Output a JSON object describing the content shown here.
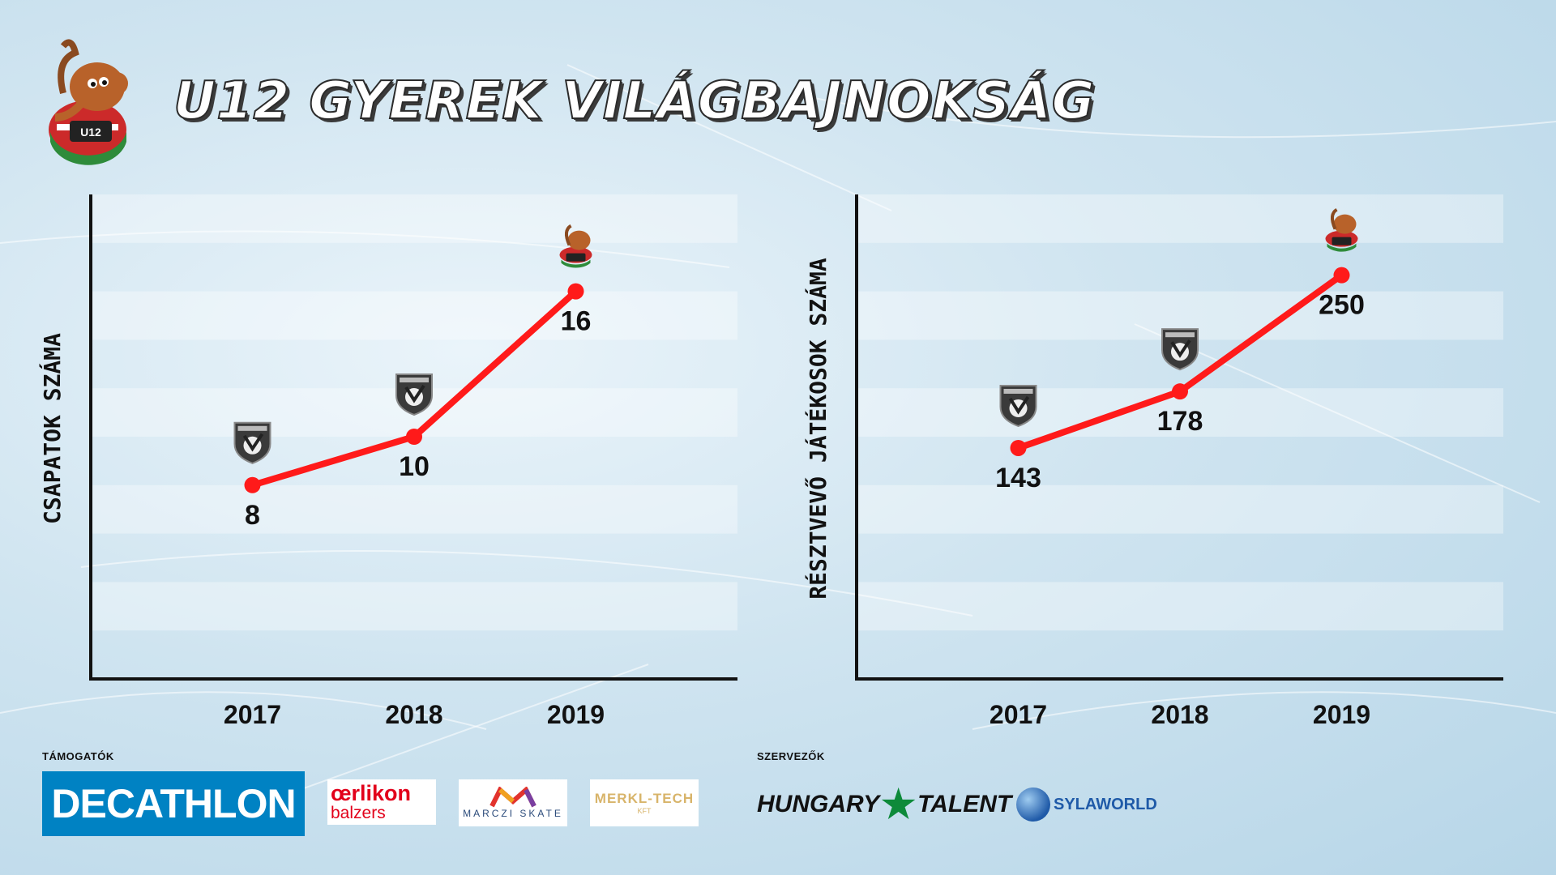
{
  "title": "U12 GYEREK VILÁGBAJNOKSÁG",
  "colors": {
    "line": "#ff1a1a",
    "axis": "#111111",
    "band": "#ffffff"
  },
  "chart_data": [
    {
      "type": "line",
      "categories": [
        "2017",
        "2018",
        "2019"
      ],
      "values": [
        8,
        10,
        16
      ],
      "data_labels": [
        "8",
        "10",
        "16"
      ],
      "title": "",
      "xlabel": "",
      "ylabel": "CSAPATOK SZÁMA",
      "ylim": [
        0,
        20
      ],
      "grid": "alternating horizontal bands",
      "point_markers": [
        "shield-logo",
        "shield-logo",
        "mascot-logo"
      ]
    },
    {
      "type": "line",
      "categories": [
        "2017",
        "2018",
        "2019"
      ],
      "values": [
        143,
        178,
        250
      ],
      "data_labels": [
        "143",
        "178",
        "250"
      ],
      "title": "",
      "xlabel": "",
      "ylabel": "RÉSZTVEVŐ JÁTÉKOSOK SZÁMA",
      "ylim": [
        0,
        300
      ],
      "grid": "alternating horizontal bands",
      "point_markers": [
        "shield-logo",
        "shield-logo",
        "mascot-logo"
      ]
    }
  ],
  "sponsors_label": "TÁMOGATÓK",
  "organizers_label": "SZERVEZŐK",
  "sponsors": {
    "decathlon": "DECATHLON",
    "oerlikon_top": "œrlikon",
    "oerlikon_bottom": "balzers",
    "marczi": "MARCZI SKATE",
    "merkl": "MERKL-TECH",
    "merkl_sub": "KFT"
  },
  "organizers": {
    "hungary_left": "HUNGARY",
    "hungary_right": "TALENT",
    "sylaworld": "SYLAWORLD"
  }
}
